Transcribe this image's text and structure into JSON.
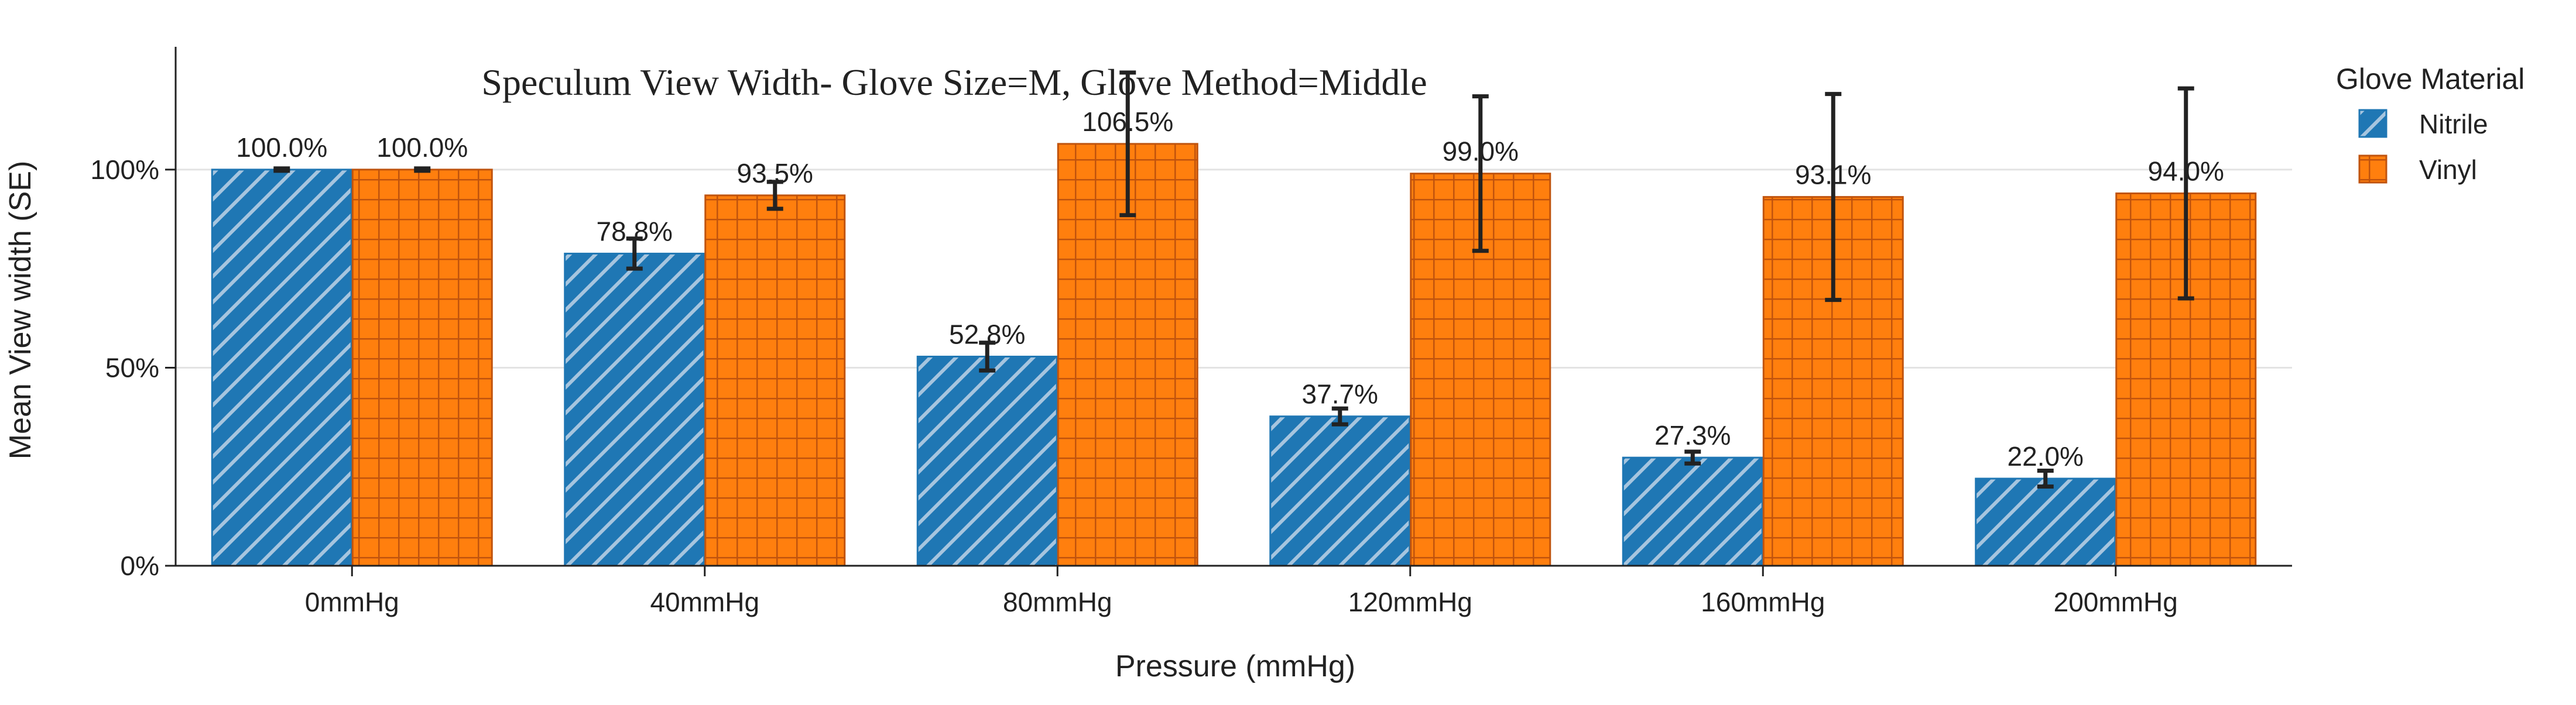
{
  "chart_data": {
    "type": "bar",
    "title": "Speculum View Width- Glove Size=M, Glove Method=Middle",
    "xlabel": "Pressure (mmHg)",
    "ylabel": "Mean View width (SE)",
    "categories": [
      "0mmHg",
      "40mmHg",
      "80mmHg",
      "120mmHg",
      "160mmHg",
      "200mmHg"
    ],
    "ylim": [
      0,
      131
    ],
    "yticks": [
      0,
      50,
      100
    ],
    "ytick_labels": [
      "0%",
      "50%",
      "100%"
    ],
    "grid": "horizontal",
    "legend": {
      "title": "Glove Material",
      "placement": "top-right"
    },
    "series": [
      {
        "name": "Nitrile",
        "values": [
          100.0,
          78.8,
          52.8,
          37.7,
          27.3,
          22.0
        ],
        "labels": [
          "100.0%",
          "78.8%",
          "52.8%",
          "37.7%",
          "27.3%",
          "22.0%"
        ],
        "error": [
          0.3,
          3.8,
          3.5,
          2.0,
          1.5,
          2.0
        ],
        "color": "#1f77b4",
        "pattern": "diagonal-stripes"
      },
      {
        "name": "Vinyl",
        "values": [
          100.0,
          93.5,
          106.5,
          99.0,
          93.1,
          94.0
        ],
        "labels": [
          "100.0%",
          "93.5%",
          "106.5%",
          "99.0%",
          "93.1%",
          "94.0%"
        ],
        "error": [
          0.3,
          3.4,
          18.0,
          19.5,
          26.0,
          26.5
        ],
        "color": "#ff7f0e",
        "pattern": "grid"
      }
    ]
  }
}
